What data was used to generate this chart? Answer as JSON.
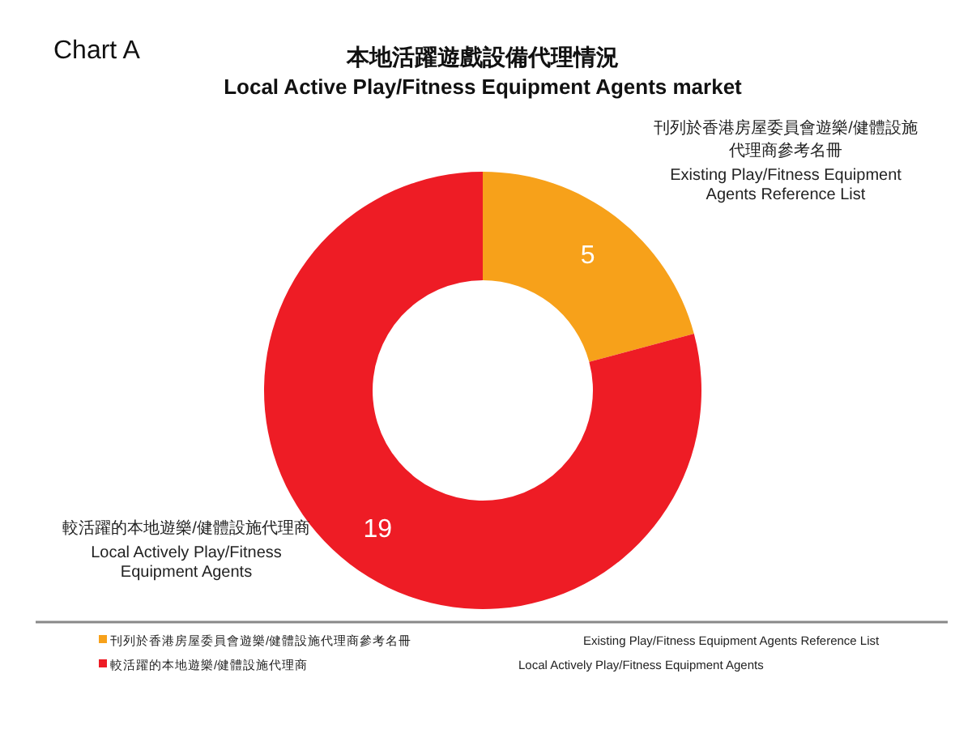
{
  "chart_data": {
    "type": "donut",
    "title": "本地活躍遊戲設備代理情況",
    "subtitle": "Local Active Play/Fitness Equipment Agents market",
    "categories": [
      "刊列於香港房屋委員會遊樂/健體設施代理商參考名冊",
      "較活躍的本地遊樂/健體設施代理商"
    ],
    "values": [
      5,
      19
    ],
    "colors": [
      "#f7a11a",
      "#ee1c25"
    ],
    "data_labels": true,
    "legend": "bottom",
    "annotations": [
      "Chart A",
      "Existing Play/Fitness Equipment Agents Reference List",
      "Local Actively Play/Fitness Equipment Agents"
    ]
  }
}
